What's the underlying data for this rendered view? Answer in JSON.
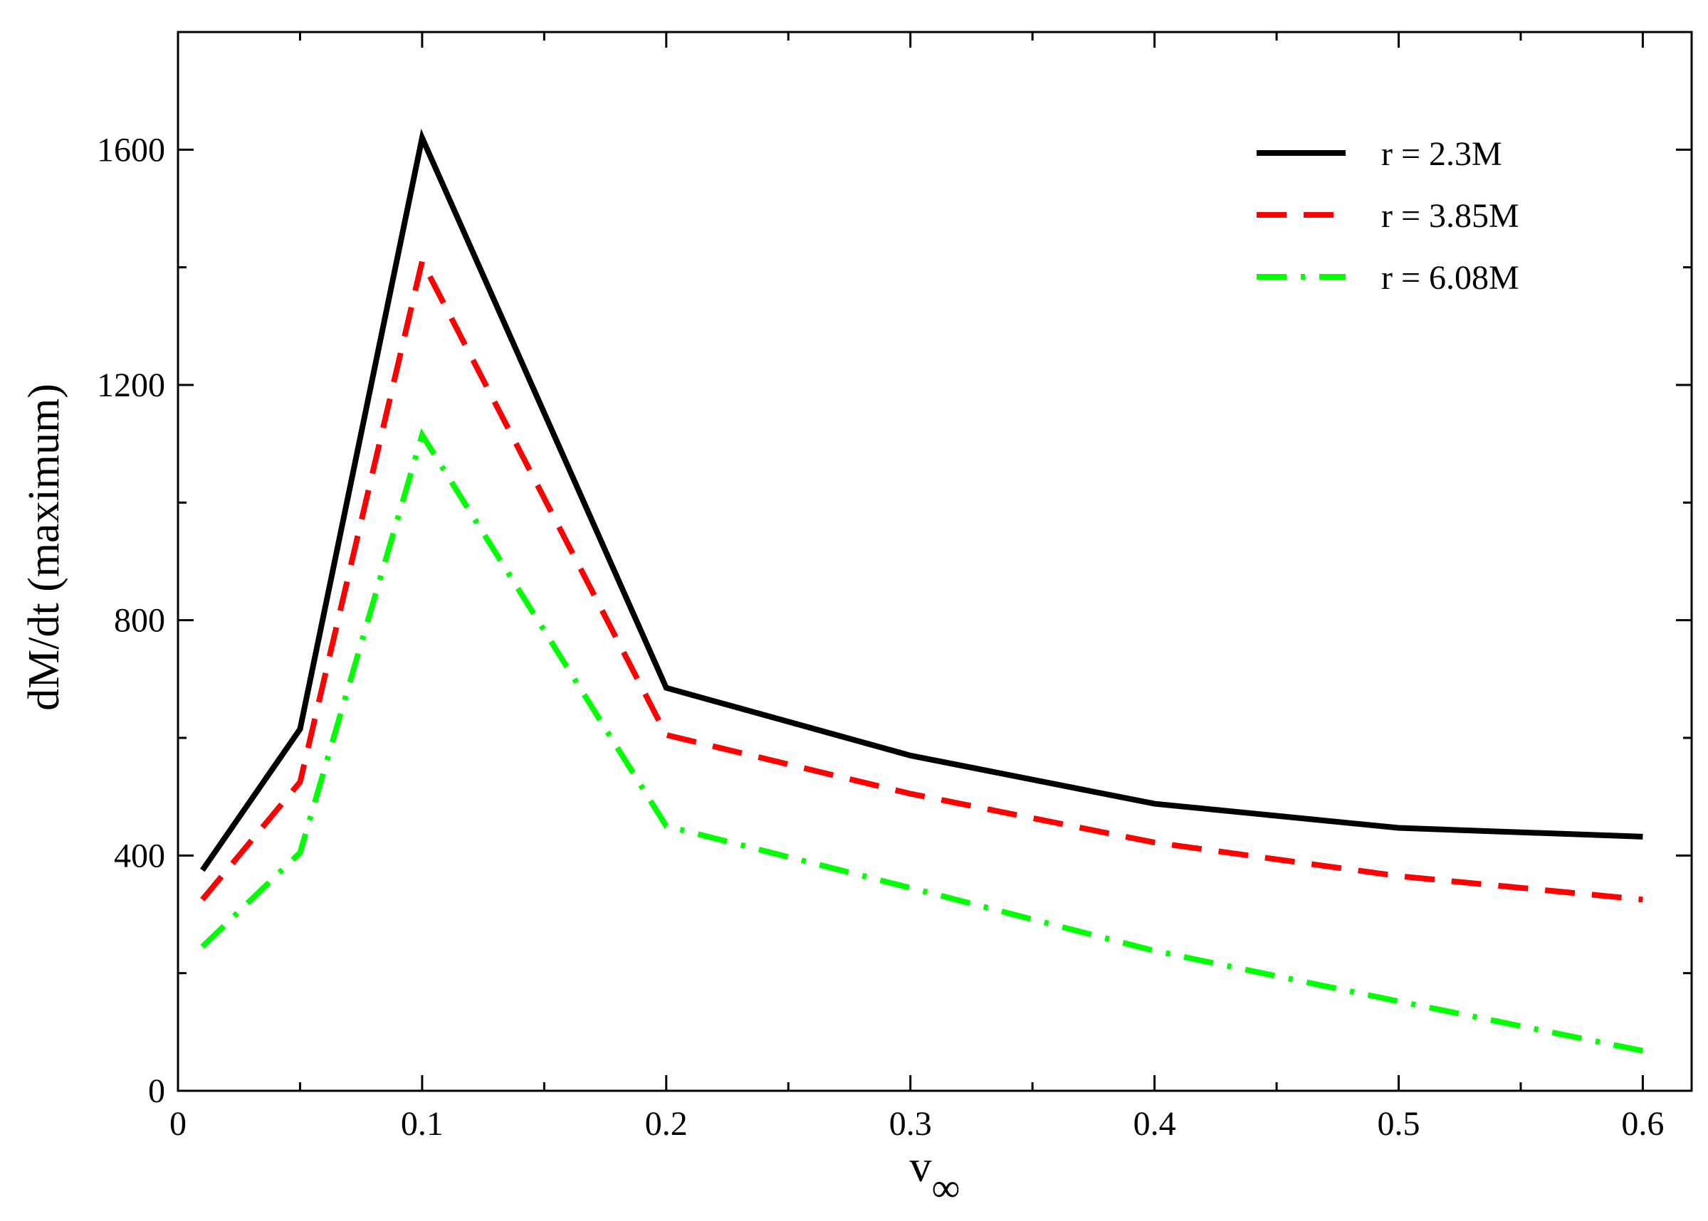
{
  "chart_data": {
    "type": "line",
    "title": "",
    "xlabel": "v",
    "xlabel_subscript": "∞",
    "ylabel": "dM/dt (maximum)",
    "xlim": [
      0,
      0.62
    ],
    "ylim": [
      0,
      1800
    ],
    "x_ticks": [
      0,
      0.1,
      0.2,
      0.3,
      0.4,
      0.5,
      0.6
    ],
    "x_tick_labels": [
      "0",
      "0.1",
      "0.2",
      "0.3",
      "0.4",
      "0.5",
      "0.6"
    ],
    "x_minor_ticks": [
      0.05,
      0.15,
      0.25,
      0.35,
      0.45,
      0.55
    ],
    "y_ticks": [
      0,
      400,
      800,
      1200,
      1600
    ],
    "y_tick_labels": [
      "0",
      "400",
      "800",
      "1200",
      "1600"
    ],
    "y_minor_ticks": [
      200,
      600,
      1000,
      1400
    ],
    "grid": false,
    "legend_position": "top-right",
    "series": [
      {
        "name": "r = 2.3M",
        "color": "#000000",
        "style": "solid",
        "x": [
          0.01,
          0.05,
          0.1,
          0.2,
          0.3,
          0.4,
          0.5,
          0.6
        ],
        "y": [
          375,
          615,
          1620,
          685,
          570,
          488,
          447,
          432
        ]
      },
      {
        "name": "r = 3.85M",
        "color": "#ff0000",
        "style": "dashed",
        "x": [
          0.01,
          0.05,
          0.1,
          0.2,
          0.3,
          0.4,
          0.5,
          0.6
        ],
        "y": [
          325,
          525,
          1410,
          605,
          505,
          422,
          365,
          325
        ]
      },
      {
        "name": "r = 6.08M",
        "color": "#00ff00",
        "style": "dash-dot",
        "x": [
          0.01,
          0.05,
          0.1,
          0.2,
          0.3,
          0.4,
          0.5,
          0.6
        ],
        "y": [
          245,
          405,
          1115,
          450,
          345,
          238,
          152,
          68
        ]
      }
    ]
  }
}
